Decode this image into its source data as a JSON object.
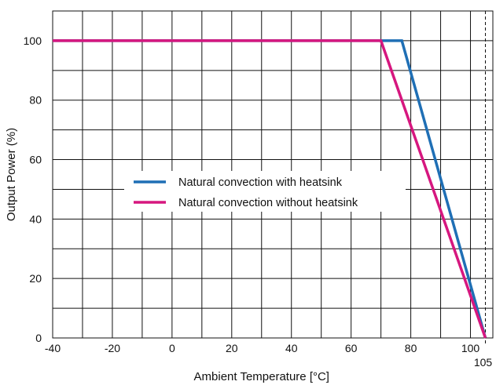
{
  "chart_data": {
    "type": "line",
    "title": "",
    "xlabel": "Ambient Temperature [°C]",
    "ylabel": "Output Power (%)",
    "xlim": [
      -40,
      107.5
    ],
    "ylim": [
      0,
      110
    ],
    "grid": true,
    "legend_position": "center-left",
    "x_ticks": [
      -40,
      -20,
      0,
      20,
      40,
      60,
      80,
      100
    ],
    "y_ticks": [
      0,
      20,
      40,
      60,
      80,
      100
    ],
    "x_tick_labels": [
      "-40",
      "-20",
      "0",
      "20",
      "40",
      "60",
      "80",
      "100"
    ],
    "y_tick_labels": [
      "0",
      "20",
      "40",
      "60",
      "80",
      "100"
    ],
    "x_grid_step": 10,
    "y_grid_step": 10,
    "marker": {
      "x": 105,
      "label": "105",
      "style": "dashed"
    },
    "series": [
      {
        "name": "Natural convection with heatsink",
        "color": "#1f6fb5",
        "points": [
          [
            -40,
            100
          ],
          [
            77,
            100
          ],
          [
            105,
            0
          ]
        ]
      },
      {
        "name": "Natural convection without heatsink",
        "color": "#d6177f",
        "points": [
          [
            -40,
            100
          ],
          [
            70,
            100
          ],
          [
            105,
            0
          ]
        ]
      }
    ]
  }
}
